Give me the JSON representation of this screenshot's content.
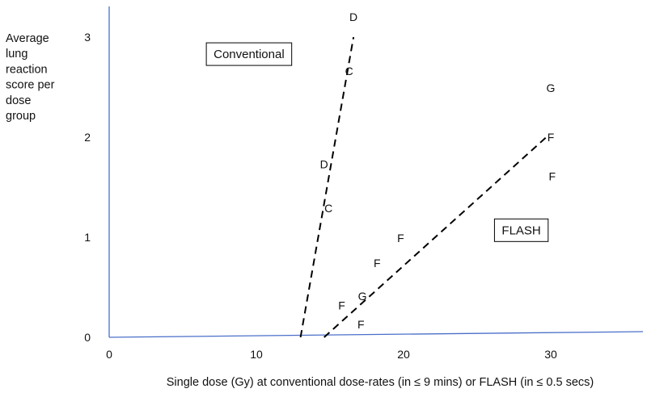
{
  "chart_data": {
    "type": "scatter",
    "title": "",
    "xlabel": "Single dose (Gy) at conventional dose-rates (in ≤ 9 mins) or FLASH (in ≤ 0.5 secs)",
    "ylabel_lines": [
      "Average",
      "lung",
      "reaction",
      "score per",
      "dose",
      "group"
    ],
    "xlim": [
      0,
      36
    ],
    "ylim": [
      0,
      3.3
    ],
    "x_ticks": [
      0,
      10,
      20,
      30
    ],
    "y_ticks": [
      0,
      1,
      2,
      3
    ],
    "grid": false,
    "points": [
      {
        "label": "D",
        "x": 16.6,
        "y": 3.2
      },
      {
        "label": "C",
        "x": 16.3,
        "y": 2.66
      },
      {
        "label": "D",
        "x": 14.6,
        "y": 1.73
      },
      {
        "label": "C",
        "x": 14.9,
        "y": 1.29
      },
      {
        "label": "G",
        "x": 30.0,
        "y": 2.49
      },
      {
        "label": "F",
        "x": 30.0,
        "y": 2.0
      },
      {
        "label": "F",
        "x": 30.1,
        "y": 1.61
      },
      {
        "label": "F",
        "x": 19.8,
        "y": 0.99
      },
      {
        "label": "F",
        "x": 18.2,
        "y": 0.74
      },
      {
        "label": "G",
        "x": 17.2,
        "y": 0.41
      },
      {
        "label": "F",
        "x": 15.8,
        "y": 0.32
      },
      {
        "label": "F",
        "x": 17.1,
        "y": 0.13
      }
    ],
    "trend_lines": [
      {
        "from": [
          13.0,
          0.0
        ],
        "to": [
          16.6,
          3.0
        ],
        "style": "dashed"
      },
      {
        "from": [
          14.6,
          0.0
        ],
        "to": [
          29.7,
          2.0
        ],
        "style": "dashed"
      }
    ],
    "annotations": [
      {
        "text": "Conventional",
        "x": 9.5,
        "y": 2.83,
        "boxed": true
      },
      {
        "text": "FLASH",
        "x": 28.0,
        "y": 1.07,
        "boxed": true
      }
    ]
  }
}
